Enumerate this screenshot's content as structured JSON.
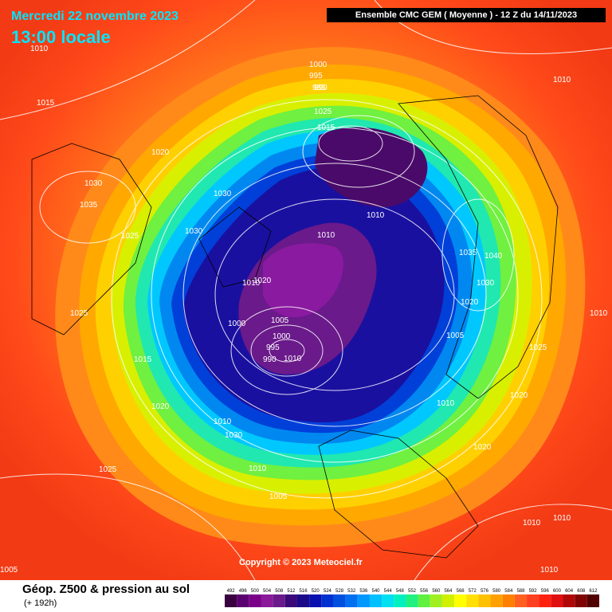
{
  "header": {
    "date": "Mercredi 22 novembre 2023",
    "time": "13:00 locale",
    "model": "Ensemble CMC GEM  ( Moyenne )  -  12 Z du 14/11/2023"
  },
  "copyright": "Copyright © 2023 Meteociel.fr",
  "footer": {
    "title": "Géop. Z500 & pression au sol",
    "subtitle": "(+ 192h)"
  },
  "legend": {
    "values": [
      "492",
      "496",
      "500",
      "504",
      "508",
      "512",
      "516",
      "520",
      "524",
      "528",
      "532",
      "536",
      "540",
      "544",
      "548",
      "552",
      "556",
      "560",
      "564",
      "568",
      "572",
      "576",
      "580",
      "584",
      "588",
      "592",
      "596",
      "600",
      "604",
      "608",
      "612"
    ],
    "colors": [
      "#3a0040",
      "#5a0070",
      "#7a008a",
      "#8a1a9a",
      "#6a1a8a",
      "#3a0a7a",
      "#1a0a8a",
      "#0a10b0",
      "#0030d0",
      "#0050e0",
      "#0070f0",
      "#0098ff",
      "#00c0ff",
      "#00e0f0",
      "#00f0c0",
      "#20f080",
      "#60f040",
      "#a0f020",
      "#d0f000",
      "#ffff00",
      "#ffe000",
      "#ffc000",
      "#ffa000",
      "#ff8000",
      "#ff6020",
      "#ff4020",
      "#ff2010",
      "#e01010",
      "#b00808",
      "#800404",
      "#500000"
    ]
  },
  "pressure_labels": [
    "1010",
    "1015",
    "1020",
    "1030",
    "1035",
    "1025",
    "1030",
    "1030",
    "1010",
    "1020",
    "1025",
    "1015",
    "1020",
    "1010",
    "1030",
    "1025",
    "1010",
    "1005",
    "1000",
    "995",
    "990",
    "985",
    "1025",
    "1015",
    "1010",
    "1010",
    "1000",
    "1005",
    "1000",
    "995",
    "990",
    "1035",
    "1040",
    "1030",
    "1020",
    "1010",
    "1005",
    "1025",
    "1020",
    "1010",
    "1020",
    "1010",
    "1010",
    "1010",
    "1005",
    "1010",
    "1010"
  ]
}
